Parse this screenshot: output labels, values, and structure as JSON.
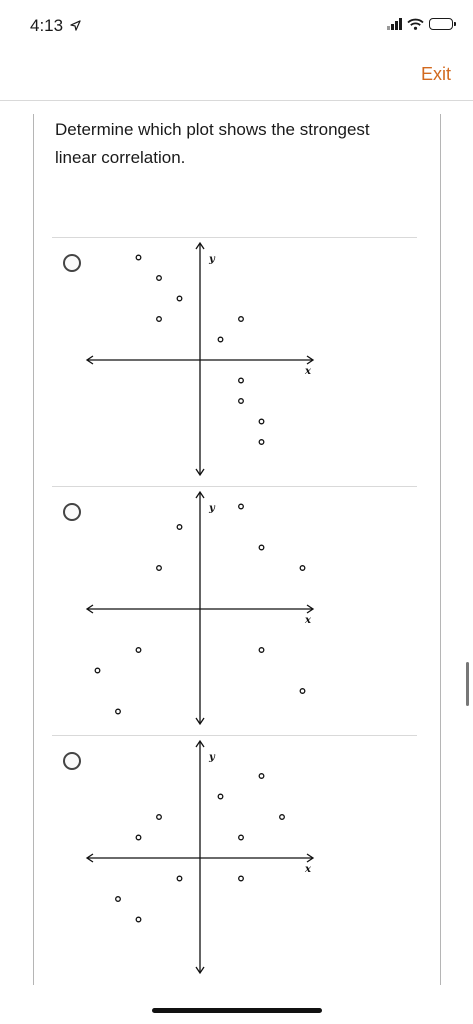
{
  "status_bar": {
    "time": "4:13",
    "location_icon": "location-arrow-icon",
    "signal_icon": "signal-bars-icon",
    "wifi_icon": "wifi-icon",
    "battery_icon": "battery-icon"
  },
  "header": {
    "exit_label": "Exit",
    "accent_color": "#d2691e"
  },
  "question": {
    "text": "Determine which plot shows the strongest linear correlation."
  },
  "choices": [
    {
      "selected": false,
      "chart_data": {
        "type": "scatter",
        "xlabel": "x",
        "ylabel": "y",
        "points": [
          [
            -3,
            5
          ],
          [
            -2,
            4
          ],
          [
            -2,
            2
          ],
          [
            -1,
            3
          ],
          [
            1,
            1
          ],
          [
            2,
            2
          ],
          [
            2,
            -1
          ],
          [
            2,
            -2
          ],
          [
            3,
            -3
          ],
          [
            3,
            -4
          ]
        ]
      }
    },
    {
      "selected": false,
      "chart_data": {
        "type": "scatter",
        "xlabel": "x",
        "ylabel": "y",
        "points": [
          [
            -1,
            4
          ],
          [
            -2,
            2
          ],
          [
            -3,
            -2
          ],
          [
            -5,
            -3
          ],
          [
            -4,
            -5
          ],
          [
            2,
            5
          ],
          [
            3,
            3
          ],
          [
            5,
            2
          ],
          [
            3,
            -2
          ],
          [
            5,
            -4
          ]
        ]
      }
    },
    {
      "selected": false,
      "chart_data": {
        "type": "scatter",
        "xlabel": "x",
        "ylabel": "y",
        "points": [
          [
            1,
            3
          ],
          [
            3,
            4
          ],
          [
            2,
            1
          ],
          [
            4,
            2
          ],
          [
            -2,
            2
          ],
          [
            -3,
            1
          ],
          [
            -1,
            -1
          ],
          [
            2,
            -1
          ],
          [
            -4,
            -2
          ],
          [
            -3,
            -3
          ]
        ]
      }
    }
  ]
}
